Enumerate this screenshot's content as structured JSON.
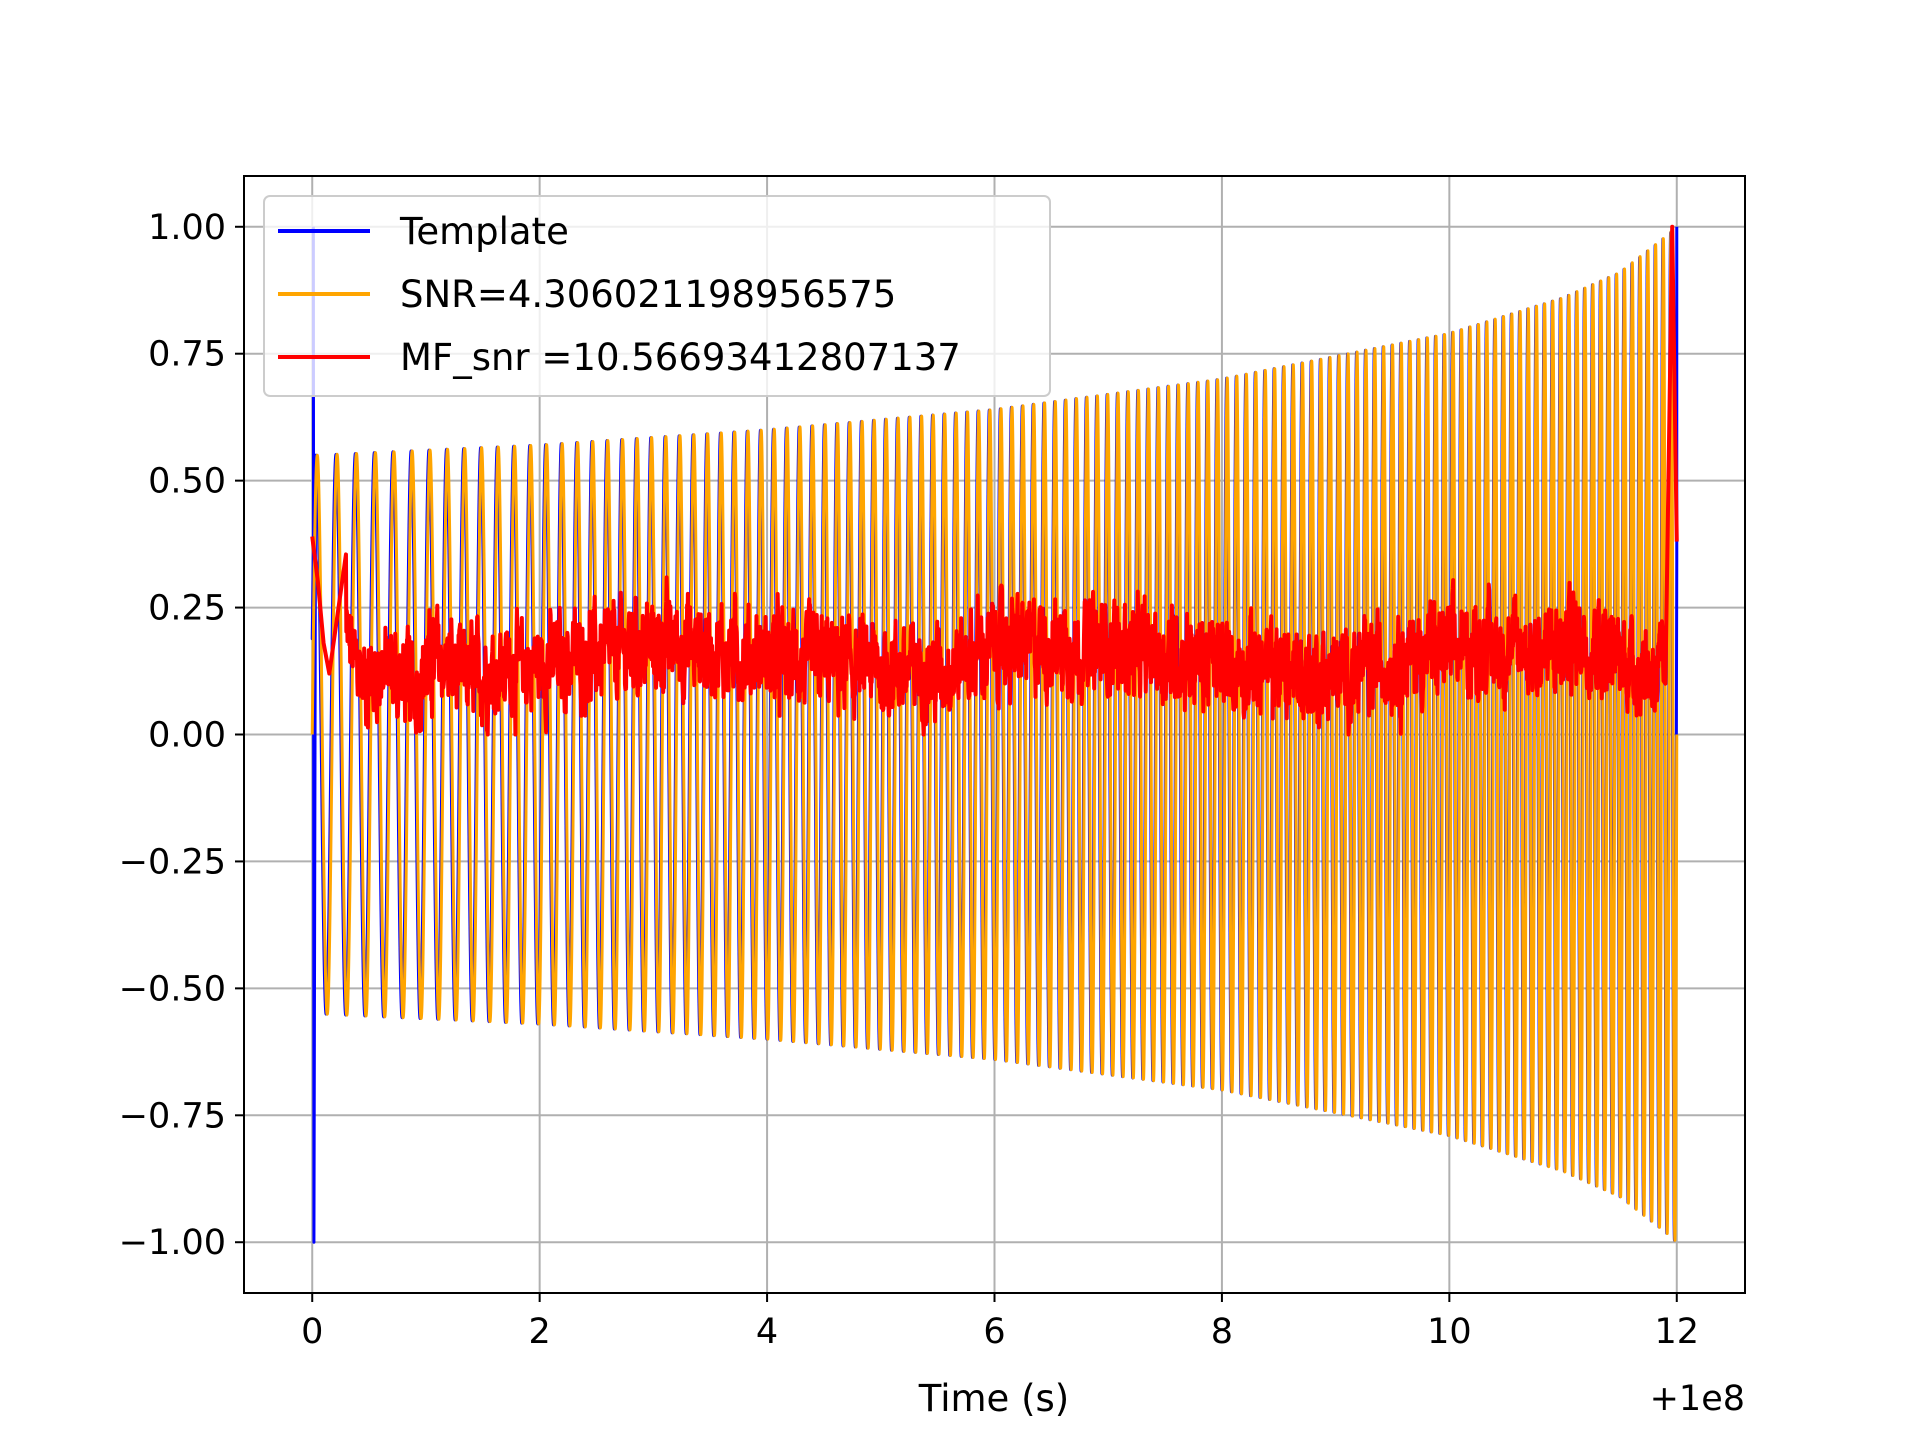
{
  "chart_data": {
    "type": "line",
    "title": "",
    "xlabel": "Time (s)",
    "ylabel": "",
    "x_offset_label": "+1e8",
    "xlim": [
      -0.6,
      12.6
    ],
    "ylim": [
      -1.1,
      1.1
    ],
    "x_ticks": [
      0,
      2,
      4,
      6,
      8,
      10,
      12
    ],
    "x_tick_labels": [
      "0",
      "2",
      "4",
      "6",
      "8",
      "10",
      "12"
    ],
    "y_ticks": [
      1.0,
      0.75,
      0.5,
      0.25,
      0.0,
      -0.25,
      -0.5,
      -0.75,
      -1.0
    ],
    "y_tick_labels": [
      "1.00",
      "0.75",
      "0.50",
      "0.25",
      "0.00",
      "−0.25",
      "−0.50",
      "−0.75",
      "−1.00"
    ],
    "grid": true,
    "legend_position": "top-left",
    "series": [
      {
        "name": "Template",
        "color": "#0000ff",
        "x_range": [
          0,
          12
        ],
        "envelope_x": [
          0.05,
          2,
          4,
          6,
          8,
          10,
          11,
          11.5,
          11.9,
          12
        ],
        "envelope_y": [
          0.55,
          0.57,
          0.6,
          0.64,
          0.7,
          0.79,
          0.86,
          0.91,
          0.98,
          1.0
        ],
        "cycles": 123,
        "start_spike": [
          1.0,
          -1.0
        ]
      },
      {
        "name": "SNR=4.306021198956575",
        "color": "#ffa500",
        "x_range": [
          0,
          12
        ],
        "envelope_x": [
          0.05,
          2,
          4,
          6,
          8,
          10,
          11,
          11.5,
          11.9,
          12
        ],
        "envelope_y": [
          0.55,
          0.57,
          0.6,
          0.64,
          0.7,
          0.79,
          0.86,
          0.91,
          0.98,
          1.0
        ],
        "cycles": 123
      },
      {
        "name": "MF_snr =10.56693412807137",
        "color": "#ff0000",
        "x_range": [
          0,
          12
        ],
        "baseline": 0.12,
        "noise_amplitude": 0.07,
        "x": [
          0,
          0.05,
          0.1,
          0.15,
          0.25,
          0.3,
          0.45,
          0.6,
          0.9,
          1.1,
          1.3,
          2.2,
          3.1,
          4.0,
          5.5,
          6.0,
          7.0,
          8.0,
          9.0,
          10.0,
          11.0,
          11.1,
          11.9,
          11.96,
          12.0
        ],
        "y": [
          0.39,
          0.3,
          0.18,
          0.12,
          0.28,
          0.36,
          0.08,
          0.15,
          0.05,
          0.25,
          0.1,
          0.2,
          0.32,
          0.22,
          0.12,
          0.31,
          0.3,
          0.18,
          0.1,
          0.29,
          0.26,
          0.38,
          0.1,
          1.0,
          0.38
        ]
      }
    ]
  }
}
